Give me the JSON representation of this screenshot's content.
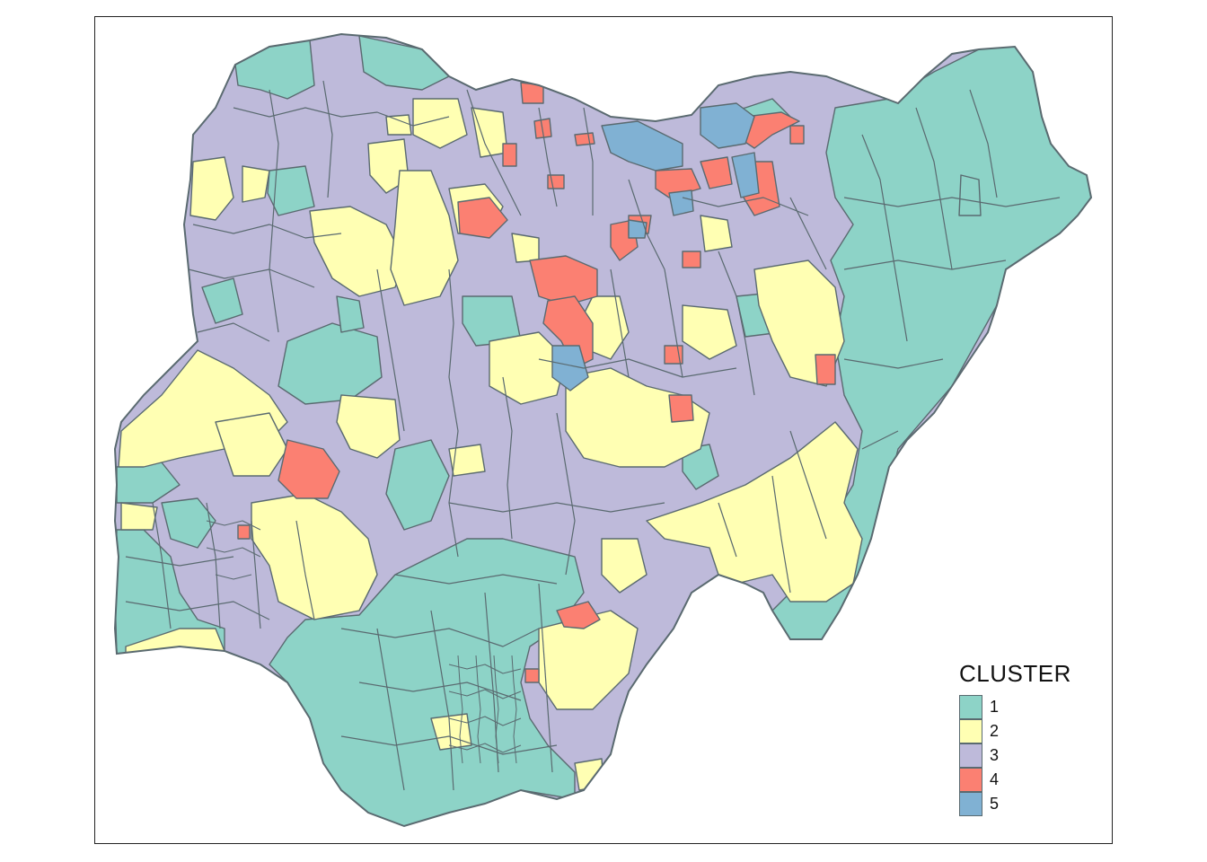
{
  "map": {
    "legend_title": "CLUSTER",
    "legend_items": [
      {
        "label": "1",
        "color": "#8DD3C7"
      },
      {
        "label": "2",
        "color": "#FFFFB3"
      },
      {
        "label": "3",
        "color": "#BEBADA"
      },
      {
        "label": "4",
        "color": "#FB8072"
      },
      {
        "label": "5",
        "color": "#80B1D3"
      }
    ],
    "border_color": "#5a6a70"
  }
}
